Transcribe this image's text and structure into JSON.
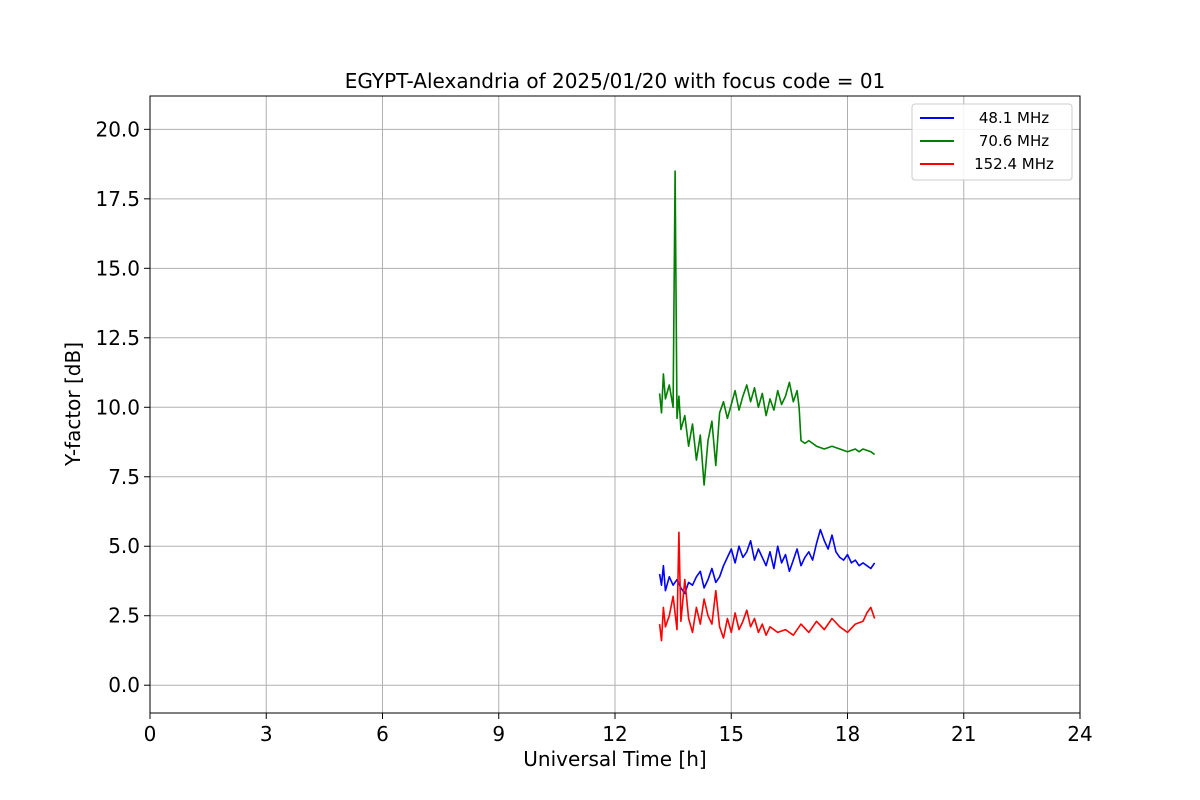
{
  "chart_data": {
    "type": "line",
    "title": "EGYPT-Alexandria of 2025/01/20 with focus code = 01",
    "xlabel": "Universal Time [h]",
    "ylabel": "Y-factor [dB]",
    "xlim": [
      0,
      24
    ],
    "ylim": [
      -1.0,
      21.2
    ],
    "xticks": [
      0,
      3,
      6,
      9,
      12,
      15,
      18,
      21,
      24
    ],
    "xtick_labels": [
      "0",
      "3",
      "6",
      "9",
      "12",
      "15",
      "18",
      "21",
      "24"
    ],
    "yticks": [
      0,
      2.5,
      5,
      7.5,
      10,
      12.5,
      15,
      17.5,
      20
    ],
    "ytick_labels": [
      "0.0",
      "2.5",
      "5.0",
      "7.5",
      "10.0",
      "12.5",
      "15.0",
      "17.5",
      "20.0"
    ],
    "grid": true,
    "legend_position": "top-right",
    "series": [
      {
        "name": "48.1 MHz",
        "color": "#0000ff",
        "x": [
          13.15,
          13.2,
          13.25,
          13.3,
          13.4,
          13.5,
          13.6,
          13.7,
          13.8,
          13.9,
          14.0,
          14.1,
          14.2,
          14.3,
          14.4,
          14.5,
          14.6,
          14.7,
          14.8,
          14.9,
          15.0,
          15.1,
          15.2,
          15.3,
          15.4,
          15.5,
          15.6,
          15.7,
          15.8,
          15.9,
          16.0,
          16.1,
          16.2,
          16.3,
          16.4,
          16.5,
          16.6,
          16.7,
          16.8,
          16.9,
          17.0,
          17.1,
          17.2,
          17.3,
          17.4,
          17.5,
          17.6,
          17.7,
          17.8,
          17.9,
          18.0,
          18.1,
          18.2,
          18.3,
          18.4,
          18.5,
          18.6,
          18.7
        ],
        "y": [
          4.0,
          3.6,
          4.3,
          3.4,
          3.9,
          3.6,
          3.8,
          3.5,
          3.3,
          3.7,
          3.6,
          3.9,
          4.1,
          3.5,
          3.8,
          4.2,
          3.7,
          3.9,
          4.3,
          4.6,
          4.9,
          4.4,
          5.0,
          4.6,
          4.8,
          5.2,
          4.5,
          4.9,
          4.6,
          4.3,
          4.8,
          4.2,
          5.0,
          4.4,
          4.7,
          4.1,
          4.5,
          4.9,
          4.3,
          4.6,
          4.8,
          4.5,
          5.1,
          5.6,
          5.2,
          4.9,
          5.4,
          4.8,
          4.6,
          4.5,
          4.7,
          4.4,
          4.5,
          4.3,
          4.4,
          4.3,
          4.2,
          4.4
        ]
      },
      {
        "name": "70.6 MHz",
        "color": "#008000",
        "x": [
          13.15,
          13.2,
          13.25,
          13.3,
          13.4,
          13.5,
          13.55,
          13.6,
          13.65,
          13.7,
          13.8,
          13.9,
          14.0,
          14.1,
          14.2,
          14.3,
          14.4,
          14.5,
          14.6,
          14.7,
          14.8,
          14.9,
          15.0,
          15.1,
          15.2,
          15.3,
          15.4,
          15.5,
          15.6,
          15.7,
          15.8,
          15.9,
          16.0,
          16.1,
          16.2,
          16.3,
          16.4,
          16.5,
          16.6,
          16.7,
          16.75,
          16.8,
          16.9,
          17.0,
          17.2,
          17.4,
          17.6,
          17.8,
          18.0,
          18.2,
          18.3,
          18.4,
          18.6,
          18.7
        ],
        "y": [
          10.5,
          9.8,
          11.2,
          10.3,
          10.8,
          10.0,
          18.5,
          9.6,
          10.4,
          9.2,
          9.7,
          8.6,
          9.4,
          8.1,
          9.0,
          7.2,
          8.8,
          9.5,
          7.9,
          9.8,
          10.2,
          9.6,
          10.1,
          10.6,
          9.9,
          10.4,
          10.8,
          10.2,
          10.7,
          10.0,
          10.5,
          9.7,
          10.3,
          9.9,
          10.6,
          10.1,
          10.4,
          10.9,
          10.2,
          10.6,
          10.0,
          8.8,
          8.7,
          8.8,
          8.6,
          8.5,
          8.6,
          8.5,
          8.4,
          8.5,
          8.4,
          8.5,
          8.4,
          8.3
        ]
      },
      {
        "name": "152.4 MHz",
        "color": "#ff0000",
        "x": [
          13.15,
          13.2,
          13.25,
          13.3,
          13.4,
          13.5,
          13.6,
          13.65,
          13.7,
          13.8,
          13.9,
          14.0,
          14.1,
          14.2,
          14.3,
          14.4,
          14.5,
          14.6,
          14.7,
          14.8,
          14.9,
          15.0,
          15.1,
          15.2,
          15.3,
          15.4,
          15.5,
          15.6,
          15.7,
          15.8,
          15.9,
          16.0,
          16.2,
          16.4,
          16.6,
          16.8,
          17.0,
          17.2,
          17.4,
          17.6,
          17.8,
          18.0,
          18.2,
          18.4,
          18.5,
          18.6,
          18.7
        ],
        "y": [
          2.2,
          1.6,
          2.8,
          2.1,
          2.5,
          3.2,
          2.0,
          5.5,
          2.3,
          3.8,
          2.4,
          1.9,
          2.8,
          2.2,
          3.1,
          2.5,
          2.2,
          3.4,
          2.1,
          1.7,
          2.4,
          1.9,
          2.6,
          2.0,
          2.3,
          2.7,
          2.1,
          2.4,
          1.9,
          2.2,
          1.8,
          2.1,
          1.9,
          2.0,
          1.8,
          2.2,
          1.9,
          2.3,
          2.0,
          2.4,
          2.1,
          1.9,
          2.2,
          2.3,
          2.6,
          2.8,
          2.4
        ]
      }
    ]
  }
}
